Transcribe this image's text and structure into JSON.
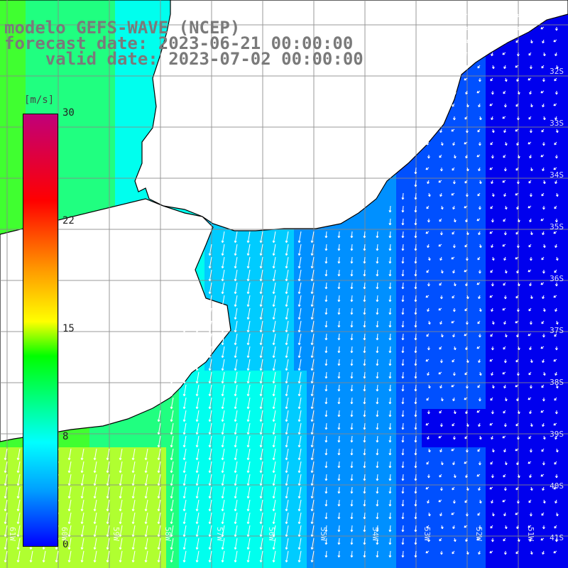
{
  "title": {
    "model": "modelo GEFS-WAVE (NCEP)",
    "forecast": "forecast date: 2023-06-21 00:00:00",
    "valid": "    valid date: 2023-07-02 00:00:00"
  },
  "colorbar": {
    "unit": "[m/s]",
    "ticks": [
      "30",
      "22",
      "15",
      "8",
      "0"
    ],
    "colors": [
      "#0000ff",
      "#00a0ff",
      "#00ffff",
      "#00ff00",
      "#ffff00",
      "#ff9900",
      "#ff0000",
      "#c0007a"
    ]
  },
  "map": {
    "lat_labels": [
      "32S",
      "33S",
      "34S",
      "35S",
      "36S",
      "37S",
      "38S",
      "39S",
      "40S",
      "41S"
    ],
    "lon_labels": [
      "61W",
      "60W",
      "59W",
      "58W",
      "57W",
      "56W",
      "55W",
      "54W",
      "53W",
      "52W",
      "51W"
    ],
    "land_color": "#ffffff",
    "grid_color": "#888888",
    "coast_color": "#000000",
    "arrow_color": "#ffffff"
  }
}
